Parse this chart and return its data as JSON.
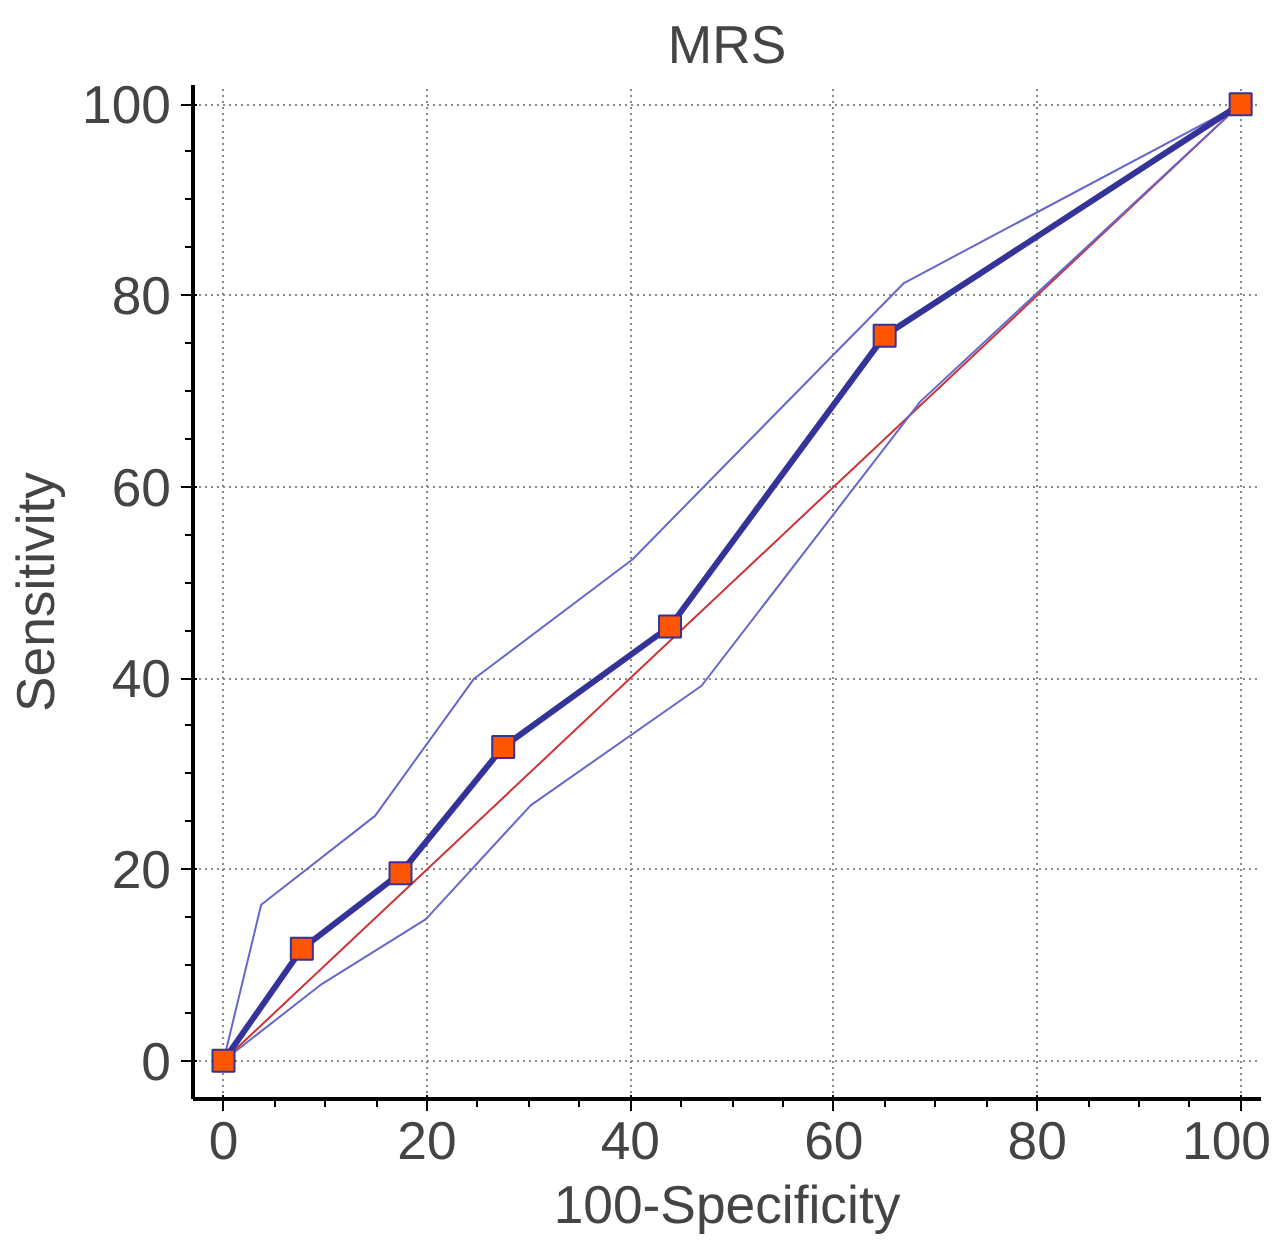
{
  "chart_data": {
    "type": "line",
    "title": "MRS",
    "xlabel": "100-Specificity",
    "ylabel": "Sensitivity",
    "xlim": [
      -3,
      102
    ],
    "ylim": [
      -4,
      102
    ],
    "xticks": [
      0,
      20,
      40,
      60,
      80,
      100
    ],
    "yticks": [
      0,
      20,
      40,
      60,
      80,
      100
    ],
    "grid": true,
    "series": [
      {
        "color": "#cc3333",
        "x": [
          0,
          100
        ],
        "values": [
          0,
          100
        ],
        "marker": "none"
      },
      {
        "color": "#6666cc",
        "x": [
          0,
          3.7,
          14.9,
          24.6,
          40.2,
          66.9,
          100
        ],
        "values": [
          0,
          16.3,
          25.6,
          39.9,
          52.4,
          81.3,
          100
        ],
        "marker": "none"
      },
      {
        "color": "#6666cc",
        "x": [
          0,
          9.5,
          19.9,
          30.2,
          47,
          68.5,
          100
        ],
        "values": [
          0,
          7.9,
          14.8,
          26.7,
          39.2,
          68.9,
          100
        ],
        "marker": "none"
      },
      {
        "color": "#333399",
        "x": [
          0,
          7.7,
          17.4,
          27.5,
          43.9,
          65,
          100
        ],
        "values": [
          0,
          11.7,
          19.6,
          32.8,
          45.4,
          75.8,
          100
        ],
        "marker": "square",
        "colors": [
          "#ff5500",
          "#ff5500",
          "#ff5500",
          "#ff5500",
          "#ff5500",
          "#ff5500",
          "#ff5500"
        ]
      }
    ]
  }
}
